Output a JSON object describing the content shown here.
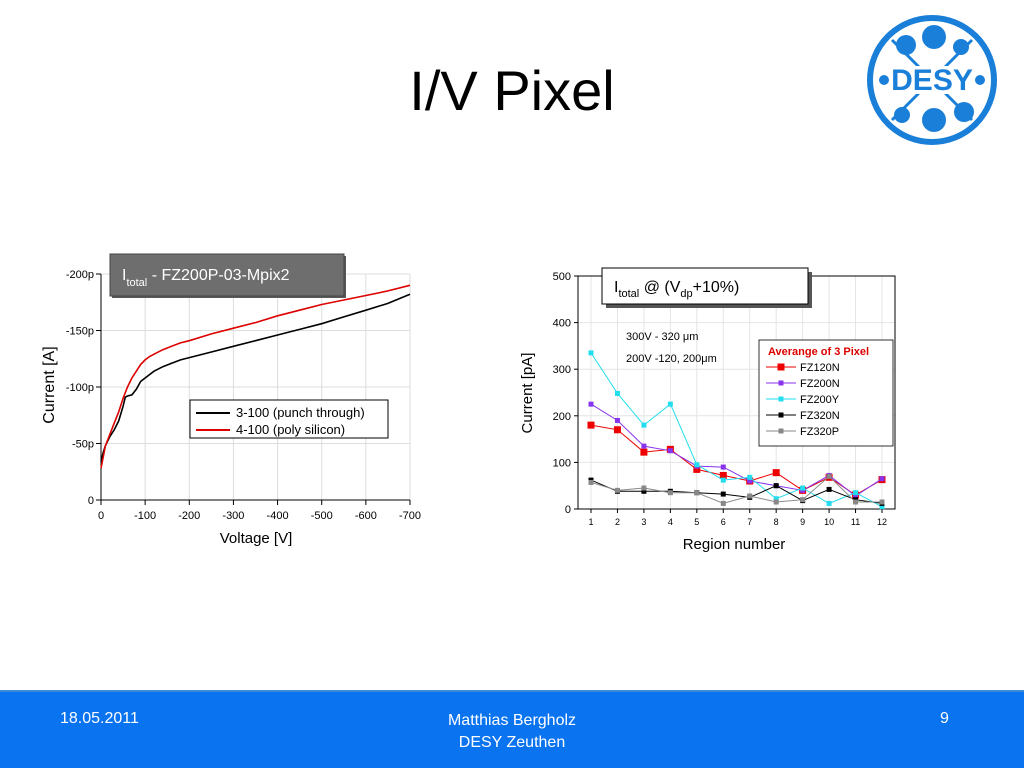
{
  "slide": {
    "title": "I/V Pixel"
  },
  "logo": {
    "text": "DESY"
  },
  "footer": {
    "date": "18.05.2011",
    "author_line1": "Matthias Bergholz",
    "author_line2": "DESY Zeuthen",
    "page": "9"
  },
  "chart_data": [
    {
      "type": "line",
      "title_main": "I",
      "title_sub": "total",
      "title_rest": " - FZ200P-03-Mpix2",
      "xlabel": "Voltage [V]",
      "ylabel": "Current [A]",
      "xticks": [
        "0",
        "-100",
        "-200",
        "-300",
        "-400",
        "-500",
        "-600",
        "-700"
      ],
      "yticks": [
        "0",
        "-50p",
        "-100p",
        "-150p",
        "-200p"
      ],
      "xlim": [
        0,
        -700
      ],
      "ylim": [
        0,
        -200
      ],
      "grid": true,
      "legend_position": "center-right",
      "series": [
        {
          "name": "3-100 (punch through)",
          "color": "#000000",
          "x": [
            0,
            -5,
            -10,
            -20,
            -30,
            -40,
            -50,
            -55,
            -60,
            -70,
            -80,
            -90,
            -100,
            -120,
            -140,
            -160,
            -180,
            -200,
            -250,
            -300,
            -350,
            -400,
            -450,
            -500,
            -550,
            -600,
            -650,
            -700
          ],
          "y": [
            -34,
            -42,
            -48,
            -56,
            -62,
            -70,
            -83,
            -91,
            -92,
            -93,
            -98,
            -105,
            -108,
            -114,
            -118,
            -121,
            -124,
            -126,
            -131,
            -136,
            -141,
            -146,
            -151,
            -156,
            -162,
            -168,
            -174,
            -182
          ]
        },
        {
          "name": "4-100 (poly silicon)",
          "color": "#dd0000",
          "x": [
            0,
            -5,
            -10,
            -20,
            -30,
            -40,
            -50,
            -60,
            -70,
            -80,
            -90,
            -100,
            -110,
            -120,
            -140,
            -160,
            -180,
            -200,
            -250,
            -300,
            -350,
            -400,
            -450,
            -500,
            -550,
            -600,
            -650,
            -700
          ],
          "y": [
            -28,
            -38,
            -48,
            -58,
            -68,
            -78,
            -90,
            -100,
            -108,
            -114,
            -120,
            -124,
            -127,
            -129,
            -133,
            -136,
            -139,
            -141,
            -147,
            -152,
            -157,
            -163,
            -168,
            -173,
            -177,
            -181,
            -185,
            -190
          ]
        }
      ]
    },
    {
      "type": "line",
      "title_main": "I",
      "title_sub1": "total",
      "title_mid": " @ (V",
      "title_sub2": "dp",
      "title_rest": "+10%)",
      "xlabel": "Region number",
      "ylabel": "Current [pA]",
      "categories": [
        "1",
        "2",
        "3",
        "4",
        "5",
        "6",
        "7",
        "8",
        "9",
        "10",
        "11",
        "12"
      ],
      "yticks": [
        "0",
        "100",
        "200",
        "300",
        "400",
        "500"
      ],
      "ylim": [
        0,
        500
      ],
      "grid": true,
      "annotation1": "300V - 320 μm",
      "annotation2": "200V -120, 200μm",
      "legend_title": "Averange of 3 Pixel",
      "legend_position": "top-right",
      "series": [
        {
          "name": "FZ120N",
          "color": "#ee0000",
          "marker_size": 7,
          "values": [
            180,
            170,
            122,
            128,
            85,
            72,
            60,
            78,
            40,
            68,
            30,
            63
          ]
        },
        {
          "name": "FZ200N",
          "color": "#8833ee",
          "marker_size": 5,
          "values": [
            225,
            190,
            135,
            125,
            92,
            90,
            60,
            50,
            40,
            72,
            28,
            65
          ]
        },
        {
          "name": "FZ200Y",
          "color": "#22ddee",
          "marker_size": 5,
          "values": [
            335,
            248,
            180,
            225,
            95,
            62,
            68,
            22,
            45,
            12,
            35,
            5
          ]
        },
        {
          "name": "FZ320N",
          "color": "#000000",
          "marker_size": 5,
          "values": [
            62,
            38,
            38,
            38,
            35,
            32,
            25,
            50,
            18,
            42,
            20,
            12
          ]
        },
        {
          "name": "FZ320P",
          "color": "#888888",
          "marker_size": 5,
          "values": [
            57,
            40,
            45,
            35,
            35,
            12,
            28,
            15,
            20,
            70,
            15,
            15
          ]
        }
      ]
    }
  ]
}
